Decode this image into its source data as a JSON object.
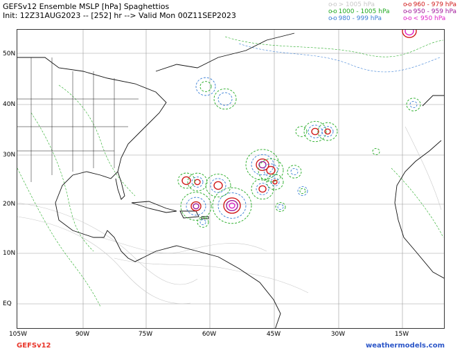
{
  "header": {
    "title": "GEFSv12 Ensemble MSLP [hPa] Spaghettios",
    "subtitle": "Init: 12Z31AUG2023 -- [252] hr --> Valid Mon 00Z11SEP2023"
  },
  "legend": [
    {
      "marker": "o-o",
      "label": "> 1005 hPa",
      "color": "#c8c8c8"
    },
    {
      "marker": "o-o",
      "label": "1000 - 1005 hPa",
      "color": "#22aa22"
    },
    {
      "marker": "o-o",
      "label": "980 - 999 hPa",
      "color": "#3a7fd5"
    },
    {
      "marker": "o-o",
      "label": "960 - 979 hPa",
      "color": "#d11a1a"
    },
    {
      "marker": "o-o",
      "label": "950 - 959 hPa",
      "color": "#a0189a"
    },
    {
      "marker": "o-o",
      "label": "< 950 hPa",
      "color": "#e020c8"
    }
  ],
  "map": {
    "lat_labels": [
      "50N",
      "40N",
      "30N",
      "20N",
      "10N",
      "EQ"
    ],
    "lon_labels": [
      "105W",
      "90W",
      "75W",
      "60W",
      "45W",
      "30W",
      "15W"
    ],
    "colors": {
      "land_outline": "#111111",
      "grid_line": "#9a9a9a",
      "high_pressure": "#c8c8c8",
      "mid_pressure": "#22aa22",
      "low_980": "#3a7fd5",
      "low_960": "#d11a1a",
      "low_950": "#a0189a",
      "below_950": "#e020c8"
    }
  },
  "footer": {
    "model": "GEFSv12",
    "model_color": "#e8362a",
    "site": "weathermodels.com",
    "site_color": "#2a55c8"
  }
}
